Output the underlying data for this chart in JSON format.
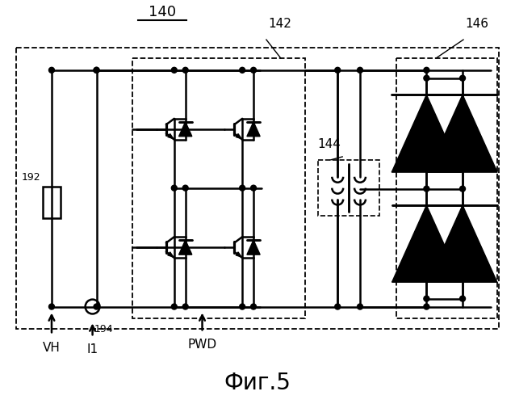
{
  "title": "Фиг.5",
  "label_140": "140",
  "label_142": "142",
  "label_144": "144",
  "label_146": "146",
  "label_192": "192",
  "label_194": "194",
  "label_VH": "VH",
  "label_I1": "I1",
  "label_PWD": "PWD",
  "bg_color": "#ffffff",
  "line_color": "#000000",
  "lw": 1.8,
  "figsize": [
    6.38,
    5.0
  ],
  "dpi": 100
}
